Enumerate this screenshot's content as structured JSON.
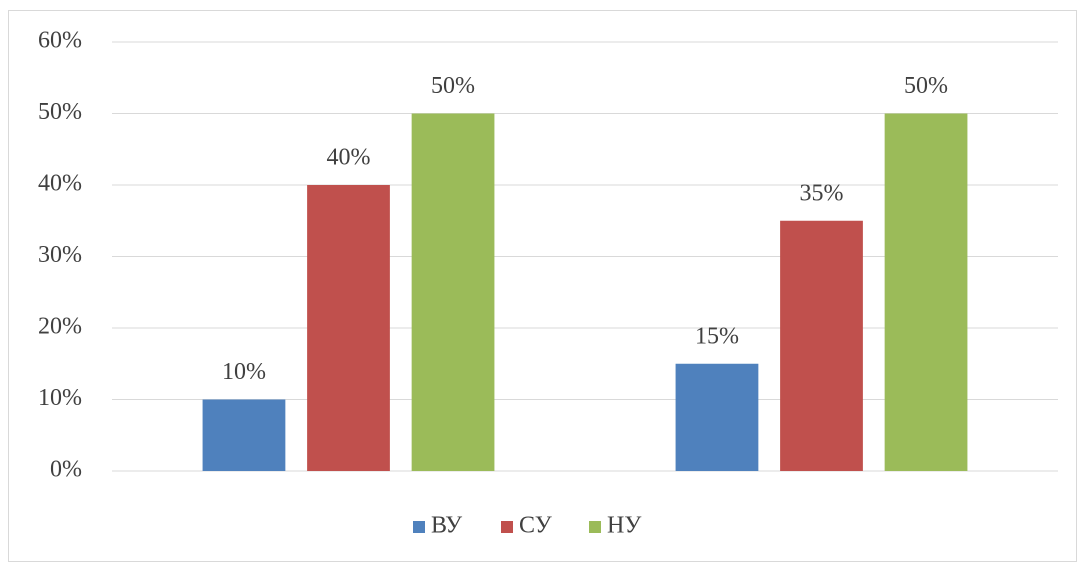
{
  "chart_data": {
    "type": "bar",
    "categories": [
      null,
      null
    ],
    "series": [
      {
        "name": "ВУ",
        "color": "#4f81bd",
        "values": [
          10,
          15
        ],
        "value_labels": [
          "10%",
          "15%"
        ]
      },
      {
        "name": "СУ",
        "color": "#c0504d",
        "values": [
          40,
          35
        ],
        "value_labels": [
          "40%",
          "35%"
        ]
      },
      {
        "name": "НУ",
        "color": "#9bbb59",
        "values": [
          50,
          50
        ],
        "value_labels": [
          "50%",
          "50%"
        ]
      }
    ],
    "ylim": [
      0,
      60
    ],
    "yticks": [
      {
        "value": 0,
        "label": "0%"
      },
      {
        "value": 10,
        "label": "10%"
      },
      {
        "value": 20,
        "label": "20%"
      },
      {
        "value": 30,
        "label": "30%"
      },
      {
        "value": 40,
        "label": "40%"
      },
      {
        "value": 50,
        "label": "50%"
      },
      {
        "value": 60,
        "label": "60%"
      }
    ],
    "grid": true,
    "legend": "bottom"
  }
}
